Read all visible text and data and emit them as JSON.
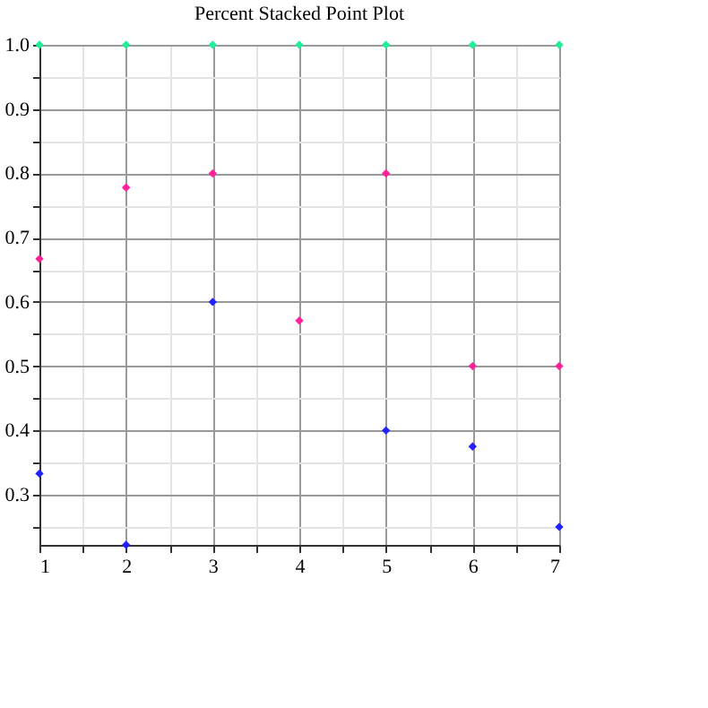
{
  "chart_data": {
    "type": "scatter",
    "title": "Percent Stacked Point Plot",
    "x": [
      1,
      2,
      3,
      4,
      5,
      6,
      7
    ],
    "series": [
      {
        "color": "#2222ff",
        "values": [
          0.333,
          0.222,
          0.6,
          null,
          0.4,
          0.375,
          0.25
        ]
      },
      {
        "color": "#ff2299",
        "values": [
          0.667,
          0.778,
          0.8,
          0.571,
          0.8,
          0.5,
          0.5
        ]
      },
      {
        "color": "#22ee99",
        "values": [
          1.0,
          1.0,
          1.0,
          1.0,
          1.0,
          1.0,
          1.0
        ]
      }
    ],
    "xlim": [
      1,
      7
    ],
    "xticks": [
      1,
      {
        "value": 1.5,
        "label": null
      },
      2,
      {
        "value": 2.5,
        "label": null
      },
      3,
      {
        "value": 3.5,
        "label": null
      },
      4,
      {
        "value": 4.5,
        "label": null
      },
      5,
      {
        "value": 5.5,
        "label": null
      },
      6,
      {
        "value": 6.5,
        "label": null
      },
      7
    ],
    "ylim": [
      0.222,
      1.0
    ],
    "yticks": [
      {
        "value": 0.25,
        "label": null
      },
      0.3,
      {
        "value": 0.35,
        "label": null
      },
      0.4,
      {
        "value": 0.45,
        "label": null
      },
      0.5,
      {
        "value": 0.55,
        "label": null
      },
      0.6,
      {
        "value": 0.65,
        "label": null
      },
      0.7,
      {
        "value": 0.75,
        "label": null
      },
      0.8,
      {
        "value": 0.85,
        "label": null
      },
      0.9,
      {
        "value": 0.95,
        "label": null
      },
      {
        "value": 1.0,
        "label": "1.0"
      }
    ],
    "grid": true,
    "legend": false,
    "marker": "diamond"
  }
}
